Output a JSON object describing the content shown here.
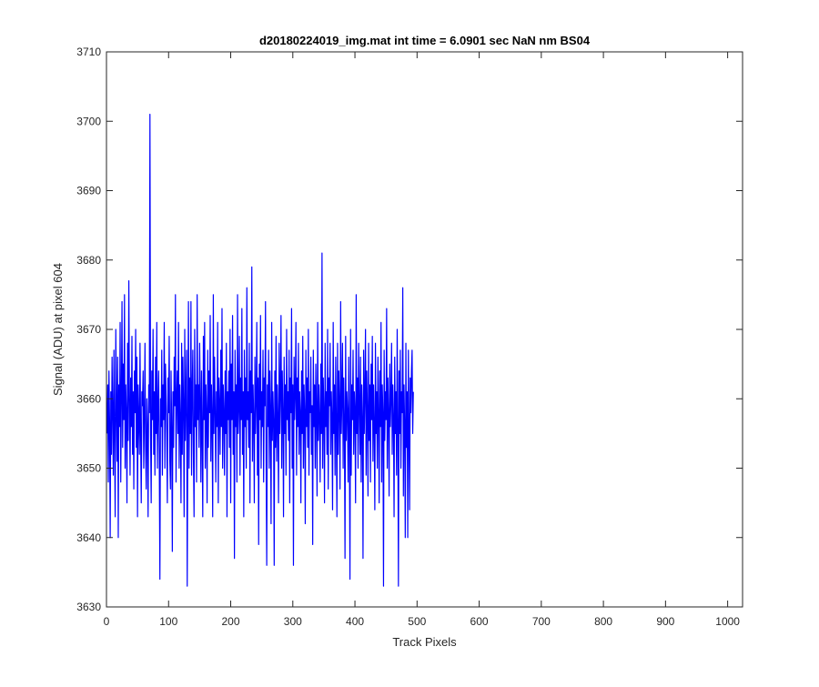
{
  "chart_data": {
    "type": "line",
    "title": "d20180224019_img.mat int time = 6.0901 sec  NaN nm BS04",
    "xlabel": "Track Pixels",
    "ylabel": "Signal (ADU) at pixel 604",
    "xlim": [
      0,
      1024
    ],
    "ylim": [
      3630,
      3710
    ],
    "xticks": [
      0,
      100,
      200,
      300,
      400,
      500,
      600,
      700,
      800,
      900,
      1000
    ],
    "yticks": [
      3630,
      3640,
      3650,
      3660,
      3670,
      3680,
      3690,
      3700,
      3710
    ],
    "grid": false,
    "series": [
      {
        "color": "#0000ff",
        "x_start": 1,
        "x_step": 1,
        "mean": 3658,
        "values": [
          3655,
          3662,
          3648,
          3664,
          3657,
          3640,
          3661,
          3652,
          3666,
          3658,
          3649,
          3667,
          3655,
          3643,
          3670,
          3659,
          3651,
          3666,
          3640,
          3662,
          3656,
          3671,
          3648,
          3660,
          3674,
          3653,
          3665,
          3657,
          3675,
          3650,
          3662,
          3658,
          3645,
          3668,
          3654,
          3677,
          3660,
          3649,
          3663,
          3656,
          3669,
          3652,
          3661,
          3647,
          3664,
          3658,
          3670,
          3653,
          3666,
          3643,
          3662,
          3657,
          3652,
          3668,
          3655,
          3645,
          3661,
          3659,
          3664,
          3650,
          3657,
          3668,
          3653,
          3647,
          3660,
          3656,
          3643,
          3662,
          3658,
          3701,
          3655,
          3645,
          3664,
          3657,
          3670,
          3652,
          3661,
          3649,
          3666,
          3655,
          3671,
          3650,
          3659,
          3664,
          3652,
          3634,
          3660,
          3656,
          3667,
          3649,
          3662,
          3657,
          3671,
          3650,
          3665,
          3660,
          3655,
          3645,
          3663,
          3658,
          3669,
          3651,
          3647,
          3664,
          3656,
          3638,
          3661,
          3653,
          3666,
          3659,
          3675,
          3648,
          3660,
          3664,
          3655,
          3671,
          3650,
          3662,
          3657,
          3645,
          3668,
          3652,
          3666,
          3659,
          3643,
          3670,
          3654,
          3661,
          3667,
          3633,
          3657,
          3674,
          3650,
          3663,
          3655,
          3674,
          3649,
          3661,
          3667,
          3652,
          3643,
          3670,
          3656,
          3662,
          3648,
          3675,
          3657,
          3662,
          3653,
          3668,
          3660,
          3648,
          3664,
          3655,
          3643,
          3669,
          3657,
          3671,
          3650,
          3662,
          3658,
          3645,
          3667,
          3653,
          3664,
          3658,
          3672,
          3651,
          3662,
          3657,
          3643,
          3675,
          3655,
          3666,
          3658,
          3648,
          3661,
          3656,
          3671,
          3645,
          3663,
          3659,
          3652,
          3667,
          3656,
          3673,
          3650,
          3662,
          3658,
          3649,
          3664,
          3655,
          3668,
          3643,
          3661,
          3657,
          3664,
          3653,
          3670,
          3645,
          3665,
          3657,
          3672,
          3652,
          3661,
          3637,
          3667,
          3656,
          3662,
          3648,
          3675,
          3655,
          3659,
          3669,
          3649,
          3663,
          3657,
          3673,
          3652,
          3661,
          3643,
          3667,
          3656,
          3663,
          3650,
          3676,
          3657,
          3661,
          3653,
          3668,
          3645,
          3664,
          3658,
          3679,
          3651,
          3662,
          3657,
          3645,
          3666,
          3655,
          3660,
          3671,
          3649,
          3663,
          3639,
          3665,
          3657,
          3672,
          3650,
          3661,
          3656,
          3667,
          3648,
          3663,
          3659,
          3674,
          3651,
          3636,
          3662,
          3656,
          3667,
          3650,
          3664,
          3658,
          3642,
          3671,
          3654,
          3661,
          3657,
          3636,
          3664,
          3653,
          3669,
          3651,
          3662,
          3657,
          3645,
          3668,
          3655,
          3661,
          3672,
          3650,
          3664,
          3658,
          3643,
          3666,
          3655,
          3662,
          3649,
          3670,
          3657,
          3661,
          3654,
          3667,
          3645,
          3663,
          3658,
          3673,
          3650,
          3662,
          3636,
          3666,
          3657,
          3661,
          3671,
          3649,
          3663,
          3656,
          3668,
          3652,
          3661,
          3658,
          3645,
          3664,
          3655,
          3669,
          3650,
          3662,
          3658,
          3642,
          3667,
          3656,
          3663,
          3653,
          3670,
          3649,
          3661,
          3658,
          3666,
          3652,
          3659,
          3639,
          3667,
          3656,
          3662,
          3650,
          3665,
          3658,
          3646,
          3671,
          3654,
          3662,
          3657,
          3648,
          3665,
          3655,
          3681,
          3650,
          3663,
          3658,
          3645,
          3668,
          3656,
          3661,
          3652,
          3670,
          3647,
          3663,
          3659,
          3668,
          3652,
          3661,
          3657,
          3644,
          3671,
          3655,
          3662,
          3649,
          3666,
          3656,
          3643,
          3668,
          3652,
          3664,
          3659,
          3647,
          3674,
          3655,
          3660,
          3668,
          3650,
          3663,
          3657,
          3637,
          3669,
          3654,
          3661,
          3658,
          3648,
          3666,
          3655,
          3634,
          3670,
          3649,
          3662,
          3657,
          3667,
          3652,
          3661,
          3658,
          3645,
          3675,
          3655,
          3663,
          3650,
          3668,
          3659,
          3652,
          3666,
          3648,
          3662,
          3657,
          3637,
          3667,
          3655,
          3661,
          3670,
          3649,
          3664,
          3658,
          3646,
          3668,
          3654,
          3662,
          3648,
          3665,
          3657,
          3669,
          3651,
          3662,
          3656,
          3644,
          3668,
          3655,
          3661,
          3650,
          3666,
          3658,
          3645,
          3664,
          3656,
          3671,
          3648,
          3662,
          3658,
          3633,
          3667,
          3654,
          3661,
          3657,
          3673,
          3650,
          3663,
          3658,
          3646,
          3665,
          3656,
          3660,
          3668,
          3652,
          3662,
          3657,
          3643,
          3666,
          3655,
          3661,
          3649,
          3670,
          3657,
          3633,
          3664,
          3655,
          3667,
          3650,
          3661,
          3658,
          3676,
          3646,
          3662,
          3656,
          3640,
          3668,
          3653,
          3661,
          3640,
          3667,
          3656,
          3644,
          3663,
          3658,
          3664,
          3667,
          3655,
          3661
        ]
      }
    ]
  }
}
